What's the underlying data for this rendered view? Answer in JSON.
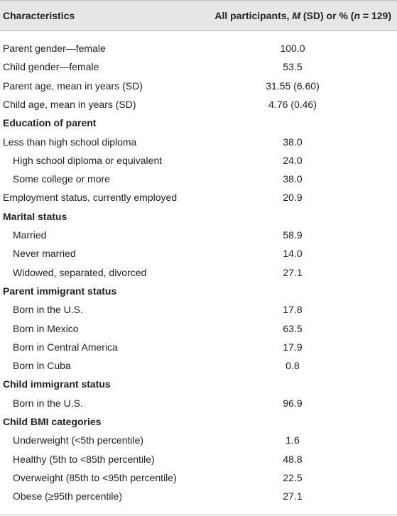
{
  "table": {
    "header": {
      "label": "Characteristics",
      "value_parts": [
        "All participants, ",
        "M",
        " (SD) or % (",
        "n",
        " = 129)"
      ]
    },
    "rows": [
      {
        "label": "Parent gender—female",
        "value": "100.0"
      },
      {
        "label": "Child gender—female",
        "value": "53.5"
      },
      {
        "label": "Parent age, mean in years (SD)",
        "value": "31.55 (6.60)"
      },
      {
        "label": "Child age, mean in years (SD)",
        "value": "4.76 (0.46)"
      },
      {
        "label": "Education of parent",
        "section": true
      },
      {
        "label": "Less than high school diploma",
        "value": "38.0"
      },
      {
        "label": "High school diploma or equivalent",
        "value": "24.0",
        "indent": true
      },
      {
        "label": "Some college or more",
        "value": "38.0",
        "indent": true
      },
      {
        "label": "Employment status, currently employed",
        "value": "20.9"
      },
      {
        "label": "Marital status",
        "section": true
      },
      {
        "label": "Married",
        "value": "58.9",
        "indent": true
      },
      {
        "label": "Never married",
        "value": "14.0",
        "indent": true
      },
      {
        "label": "Widowed, separated, divorced",
        "value": "27.1",
        "indent": true
      },
      {
        "label": "Parent immigrant status",
        "section": true
      },
      {
        "label": "Born in the U.S.",
        "value": "17.8",
        "indent": true
      },
      {
        "label": "Born in Mexico",
        "value": "63.5",
        "indent": true
      },
      {
        "label": "Born in Central America",
        "value": "17.9",
        "indent": true
      },
      {
        "label": "Born in Cuba",
        "value": "0.8",
        "indent": true
      },
      {
        "label": "Child immigrant status",
        "section": true
      },
      {
        "label": "Born in the U.S.",
        "value": "96.9",
        "indent": true
      },
      {
        "label": "Child BMI categories",
        "section": true
      },
      {
        "label": "Underweight (<5th percentile)",
        "value": "1.6",
        "indent": true
      },
      {
        "label": "Healthy (5th to <85th percentile)",
        "value": "48.8",
        "indent": true
      },
      {
        "label": "Overweight (85th to <95th percentile)",
        "value": "22.5",
        "indent": true
      },
      {
        "label": "Obese (≥95th percentile)",
        "value": "27.1",
        "indent": true
      }
    ]
  }
}
